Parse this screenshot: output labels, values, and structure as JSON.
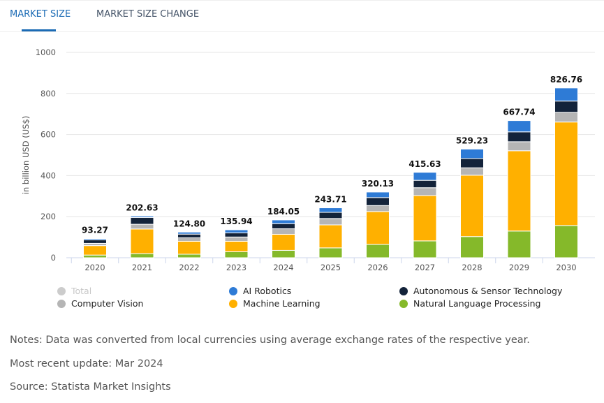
{
  "tabs": [
    {
      "label": "MARKET SIZE",
      "active": true
    },
    {
      "label": "MARKET SIZE CHANGE",
      "active": false
    }
  ],
  "chart_data": {
    "type": "bar",
    "stacked": true,
    "ylabel": "in billion USD (US$)",
    "ylim": [
      0,
      1000
    ],
    "yticks": [
      0,
      200,
      400,
      600,
      800,
      1000
    ],
    "grid": true,
    "legend_placement": "bottom",
    "categories": [
      "2020",
      "2021",
      "2022",
      "2023",
      "2024",
      "2025",
      "2026",
      "2027",
      "2028",
      "2029",
      "2030"
    ],
    "totals": [
      "93.27",
      "202.63",
      "124.80",
      "135.94",
      "184.05",
      "243.71",
      "320.13",
      "415.63",
      "529.23",
      "667.74",
      "826.76"
    ],
    "series": [
      {
        "name": "Natural Language Processing",
        "color": "#85b92a",
        "values": [
          13,
          20,
          17,
          29,
          36,
          48,
          65,
          82,
          103,
          130,
          157
        ]
      },
      {
        "name": "Machine Learning",
        "color": "#ffb000",
        "values": [
          46,
          120,
          63,
          51,
          78,
          112,
          160,
          221,
          299,
          391,
          504
        ]
      },
      {
        "name": "Computer Vision",
        "color": "#b5b5b5",
        "values": [
          11,
          23,
          17,
          21,
          27,
          31,
          29,
          38,
          36,
          44,
          47
        ]
      },
      {
        "name": "Autonomous & Sensor Technology",
        "color": "#13233a",
        "values": [
          17,
          33,
          18,
          20,
          25,
          30,
          39,
          36,
          45,
          48,
          55
        ]
      },
      {
        "name": "AI Robotics",
        "color": "#2e7bd6",
        "values": [
          6,
          7,
          10,
          15,
          18,
          22,
          27,
          39,
          46,
          55,
          64
        ]
      }
    ],
    "legend": [
      {
        "name": "Total",
        "color": "#cccccc",
        "hidden": true
      },
      {
        "name": "AI Robotics",
        "color": "#2e7bd6"
      },
      {
        "name": "Autonomous & Sensor Technology",
        "color": "#13233a"
      },
      {
        "name": "Computer Vision",
        "color": "#b5b5b5"
      },
      {
        "name": "Machine Learning",
        "color": "#ffb000"
      },
      {
        "name": "Natural Language Processing",
        "color": "#85b92a"
      }
    ]
  },
  "notes": {
    "note": "Notes: Data was converted from local currencies using average exchange rates of the respective year.",
    "update": "Most recent update: Mar 2024",
    "source": "Source: Statista Market Insights"
  }
}
